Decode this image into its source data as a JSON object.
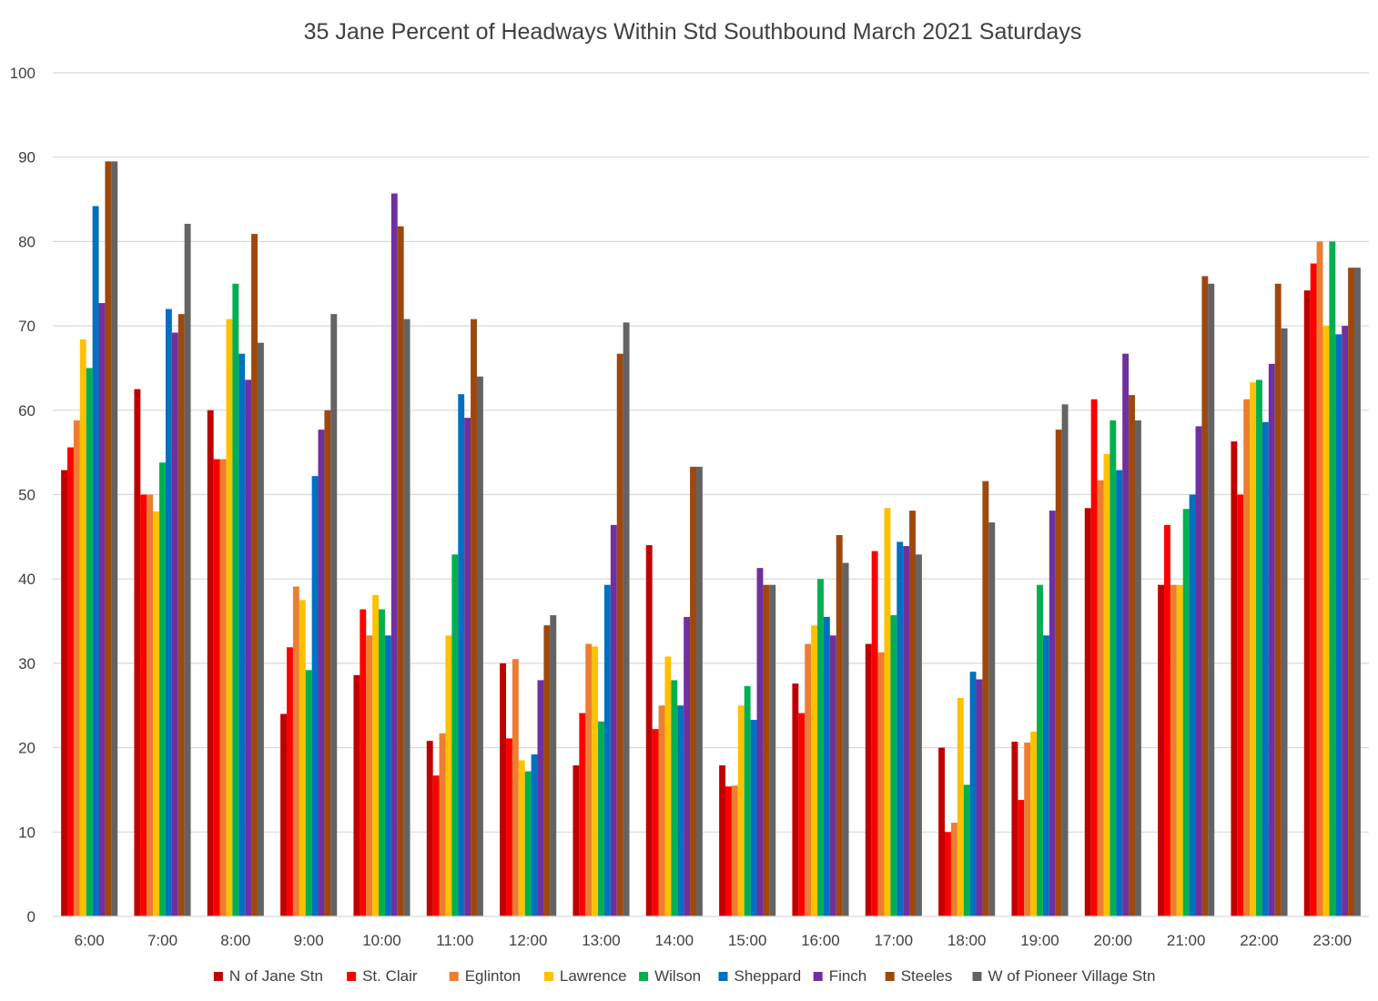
{
  "chart_data": {
    "type": "bar",
    "title": "35 Jane  Percent of Headways Within Std Southbound March 2021 Saturdays",
    "xlabel": "",
    "ylabel": "",
    "ylim": [
      0,
      100
    ],
    "yticks": [
      "0",
      "10",
      "20",
      "30",
      "40",
      "50",
      "60",
      "70",
      "80",
      "90",
      "100"
    ],
    "grid": true,
    "legend_position": "bottom",
    "categories": [
      "6:00",
      "7:00",
      "8:00",
      "9:00",
      "10:00",
      "11:00",
      "12:00",
      "13:00",
      "14:00",
      "15:00",
      "16:00",
      "17:00",
      "18:00",
      "19:00",
      "20:00",
      "21:00",
      "22:00",
      "23:00"
    ],
    "series": [
      {
        "name": "N of Jane Stn",
        "color": "#c00000",
        "values": [
          52.9,
          62.5,
          60.0,
          24.0,
          28.6,
          20.8,
          30.0,
          17.9,
          44.0,
          17.9,
          27.6,
          32.3,
          20.0,
          20.7,
          48.4,
          39.3,
          56.3,
          74.2
        ]
      },
      {
        "name": "St. Clair",
        "color": "#ff0000",
        "values": [
          55.6,
          50.0,
          54.2,
          31.9,
          36.4,
          16.7,
          21.1,
          24.1,
          22.2,
          15.4,
          24.1,
          43.3,
          10.0,
          13.8,
          61.3,
          46.4,
          50.0,
          77.4
        ]
      },
      {
        "name": "Eglinton",
        "color": "#ed7d31",
        "values": [
          58.8,
          50.0,
          54.2,
          39.1,
          33.3,
          21.7,
          30.5,
          32.3,
          25.0,
          15.5,
          32.3,
          31.3,
          11.1,
          20.6,
          51.7,
          39.3,
          61.3,
          80.0
        ]
      },
      {
        "name": "Lawrence",
        "color": "#ffc000",
        "values": [
          68.4,
          48.0,
          70.8,
          37.5,
          38.1,
          33.3,
          18.5,
          32.0,
          30.8,
          25.0,
          34.5,
          48.4,
          25.9,
          21.9,
          54.8,
          39.3,
          63.3,
          70.0
        ]
      },
      {
        "name": "Wilson",
        "color": "#00b050",
        "values": [
          65.0,
          53.8,
          75.0,
          29.2,
          36.4,
          42.9,
          17.2,
          23.1,
          28.0,
          27.3,
          40.0,
          35.7,
          15.6,
          39.3,
          58.8,
          48.3,
          63.6,
          80.0
        ]
      },
      {
        "name": "Sheppard",
        "color": "#0070c0",
        "values": [
          84.2,
          72.0,
          66.7,
          52.2,
          33.3,
          61.9,
          19.2,
          39.3,
          25.0,
          23.3,
          35.5,
          44.4,
          29.0,
          33.3,
          52.9,
          50.0,
          58.6,
          69.0
        ]
      },
      {
        "name": "Finch",
        "color": "#7030a0",
        "values": [
          72.7,
          69.2,
          63.6,
          57.7,
          85.7,
          59.1,
          28.0,
          46.4,
          35.5,
          41.3,
          33.3,
          43.9,
          28.1,
          48.1,
          66.7,
          58.1,
          65.5,
          70.0
        ]
      },
      {
        "name": "Steeles",
        "color": "#9e480e",
        "values": [
          89.5,
          71.4,
          80.9,
          60.0,
          81.8,
          70.8,
          34.5,
          66.7,
          53.3,
          39.3,
          45.2,
          48.1,
          51.6,
          57.7,
          61.8,
          75.9,
          75.0,
          76.9
        ]
      },
      {
        "name": "W of Pioneer Village Stn",
        "color": "#636363",
        "values": [
          89.5,
          82.1,
          68.0,
          71.4,
          70.8,
          64.0,
          35.7,
          70.4,
          53.3,
          39.3,
          41.9,
          42.9,
          46.7,
          60.7,
          58.8,
          75.0,
          69.7,
          76.9
        ]
      }
    ]
  }
}
